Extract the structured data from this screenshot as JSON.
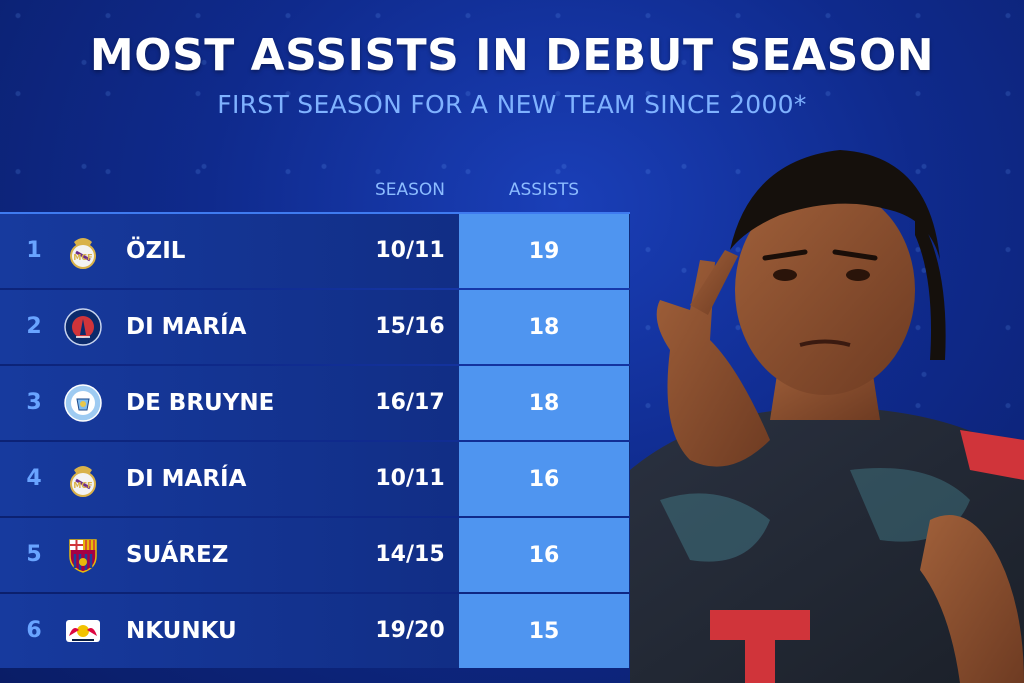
{
  "header": {
    "title": "MOST ASSISTS IN DEBUT SEASON",
    "subtitle": "FIRST SEASON FOR A NEW TEAM SINCE 2000*"
  },
  "columns": {
    "season": "SEASON",
    "assists": "ASSISTS"
  },
  "rows": [
    {
      "rank": "1",
      "player": "ÖZIL",
      "season": "10/11",
      "assists": "19",
      "crest": "real-madrid-crest-icon"
    },
    {
      "rank": "2",
      "player": "DI MARÍA",
      "season": "15/16",
      "assists": "18",
      "crest": "psg-crest-icon"
    },
    {
      "rank": "3",
      "player": "DE BRUYNE",
      "season": "16/17",
      "assists": "18",
      "crest": "man-city-crest-icon"
    },
    {
      "rank": "4",
      "player": "DI MARÍA",
      "season": "10/11",
      "assists": "16",
      "crest": "real-madrid-crest-icon"
    },
    {
      "rank": "5",
      "player": "SUÁREZ",
      "season": "14/15",
      "assists": "16",
      "crest": "barcelona-crest-icon"
    },
    {
      "rank": "6",
      "player": "NKUNKU",
      "season": "19/20",
      "assists": "15",
      "crest": "rb-leipzig-crest-icon"
    }
  ],
  "colors": {
    "background": "#0f2a8c",
    "assists_cell": "#4f95f0",
    "subtitle": "#7fb2ff"
  }
}
